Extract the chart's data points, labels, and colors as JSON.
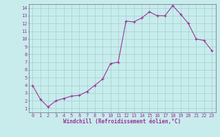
{
  "x": [
    0,
    1,
    2,
    3,
    4,
    5,
    6,
    7,
    8,
    9,
    10,
    11,
    12,
    13,
    14,
    15,
    16,
    17,
    18,
    19,
    20,
    21,
    22,
    23
  ],
  "y": [
    4.0,
    2.2,
    1.2,
    2.0,
    2.3,
    2.6,
    2.7,
    3.2,
    4.0,
    4.8,
    6.8,
    7.0,
    12.3,
    12.2,
    12.7,
    13.5,
    13.0,
    13.0,
    14.3,
    13.2,
    12.0,
    10.0,
    9.8,
    8.5
  ],
  "line_color": "#993399",
  "marker": "+",
  "marker_size": 3,
  "bg_color": "#c8ecec",
  "grid_color": "#a0d0d0",
  "xlabel": "Windchill (Refroidissement éolien,°C)",
  "xlabel_color": "#993399",
  "tick_color": "#993399",
  "xlim": [
    -0.5,
    23.5
  ],
  "ylim": [
    0.5,
    14.5
  ],
  "yticks": [
    1,
    2,
    3,
    4,
    5,
    6,
    7,
    8,
    9,
    10,
    11,
    12,
    13,
    14
  ],
  "xticks": [
    0,
    1,
    2,
    3,
    4,
    5,
    6,
    7,
    8,
    9,
    10,
    11,
    12,
    13,
    14,
    15,
    16,
    17,
    18,
    19,
    20,
    21,
    22,
    23
  ]
}
